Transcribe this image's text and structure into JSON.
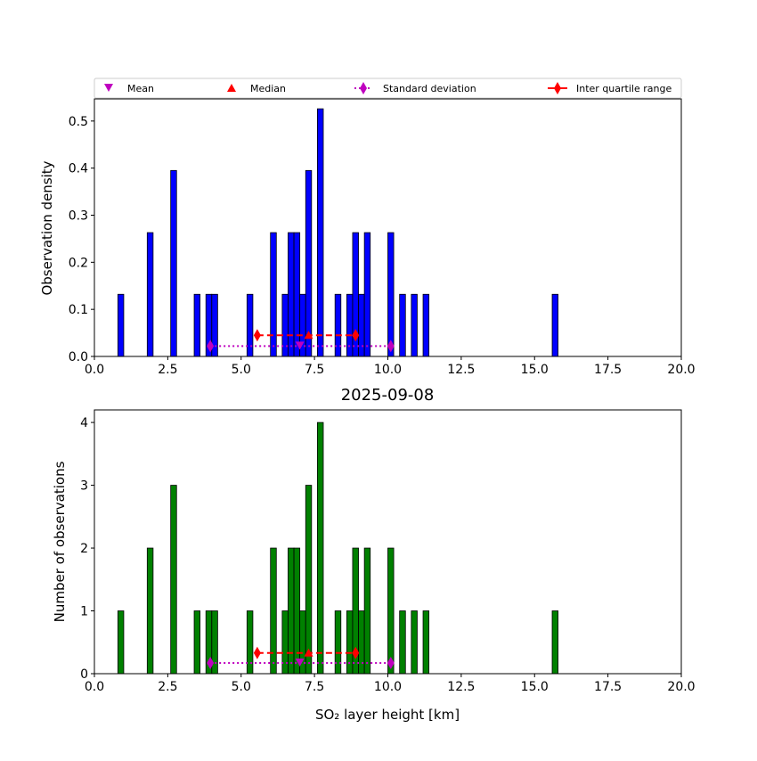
{
  "chart_data": [
    {
      "type": "bar",
      "ylabel": "Observation density",
      "xlim": [
        0,
        20
      ],
      "ylim": [
        0,
        0.547
      ],
      "xticks": [
        "0.0",
        "2.5",
        "5.0",
        "7.5",
        "10.0",
        "12.5",
        "15.0",
        "17.5",
        "20.0"
      ],
      "yticks": [
        "0.0",
        "0.1",
        "0.2",
        "0.3",
        "0.4",
        "0.5"
      ],
      "ytick_values": [
        0,
        0.1,
        0.2,
        0.3,
        0.4,
        0.5
      ],
      "bin_width": 0.2,
      "color": "#0000ff",
      "bins": [
        0.8,
        1.8,
        2.6,
        3.4,
        3.8,
        4.0,
        5.2,
        6.0,
        6.4,
        6.6,
        6.8,
        7.0,
        7.2,
        7.6,
        8.2,
        8.6,
        8.8,
        9.0,
        9.2,
        10.0,
        10.4,
        10.8,
        11.2,
        15.6
      ],
      "values": [
        0.132,
        0.263,
        0.395,
        0.132,
        0.132,
        0.132,
        0.132,
        0.263,
        0.132,
        0.263,
        0.263,
        0.132,
        0.395,
        0.526,
        0.132,
        0.132,
        0.263,
        0.132,
        0.263,
        0.263,
        0.132,
        0.132,
        0.132,
        0.132
      ],
      "stats_y": {
        "mean": 0.022,
        "median": 0.045,
        "std": 0.022,
        "iqr": 0.045
      }
    },
    {
      "type": "bar",
      "title": "2025-09-08",
      "xlabel": "SO₂ layer height [km]",
      "ylabel": "Number of observations",
      "xlim": [
        0,
        20
      ],
      "ylim": [
        0,
        4.2
      ],
      "xticks": [
        "0.0",
        "2.5",
        "5.0",
        "7.5",
        "10.0",
        "12.5",
        "15.0",
        "17.5",
        "20.0"
      ],
      "yticks": [
        "0",
        "1",
        "2",
        "3",
        "4"
      ],
      "ytick_values": [
        0,
        1,
        2,
        3,
        4
      ],
      "bin_width": 0.2,
      "color": "#008000",
      "bins": [
        0.8,
        1.8,
        2.6,
        3.4,
        3.8,
        4.0,
        5.2,
        6.0,
        6.4,
        6.6,
        6.8,
        7.0,
        7.2,
        7.6,
        8.2,
        8.6,
        8.8,
        9.0,
        9.2,
        10.0,
        10.4,
        10.8,
        11.2,
        15.6
      ],
      "values": [
        1,
        2,
        3,
        1,
        1,
        1,
        1,
        2,
        1,
        2,
        2,
        1,
        3,
        4,
        1,
        1,
        2,
        1,
        2,
        2,
        1,
        1,
        1,
        1
      ],
      "stats_y": {
        "mean": 0.17,
        "median": 0.33,
        "std": 0.17,
        "iqr": 0.33
      }
    }
  ],
  "stats": {
    "mean": 7.0,
    "median": 7.3,
    "std_range": [
      3.95,
      10.1
    ],
    "iqr_range": [
      5.55,
      8.9
    ]
  },
  "legend": {
    "mean": "Mean",
    "median": "Median",
    "std": "Standard deviation",
    "iqr": "Inter quartile range"
  },
  "colors": {
    "mean": "#bf00bf",
    "median": "#ff0000",
    "std": "#bf00bf",
    "iqr": "#ff0000"
  }
}
